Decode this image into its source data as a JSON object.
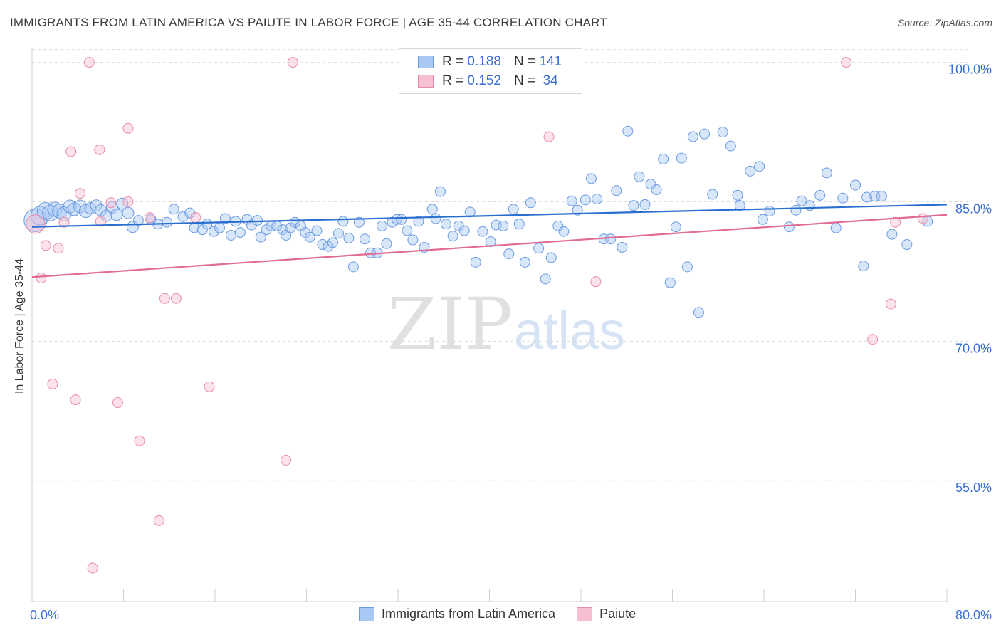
{
  "title": "IMMIGRANTS FROM LATIN AMERICA VS PAIUTE IN LABOR FORCE | AGE 35-44 CORRELATION CHART",
  "source": "Source: ZipAtlas.com",
  "watermark": {
    "zip": "ZIP",
    "atlas": "atlas"
  },
  "legend": {
    "r_label": "R =",
    "n_label": "N =",
    "rows": [
      {
        "r": "0.188",
        "n": "141"
      },
      {
        "r": "0.152",
        "n": "34"
      }
    ]
  },
  "colors": {
    "blue_fill": "#a9c8f3",
    "blue_stroke": "#6b9be0",
    "blue_line": "#2a6fcf",
    "pink_fill": "#f6bfd2",
    "pink_stroke": "#e98aab",
    "pink_line": "#e06c94",
    "axis_label": "#3a6fd0"
  },
  "chart_data": {
    "type": "scatter",
    "title": "IMMIGRANTS FROM LATIN AMERICA VS PAIUTE IN LABOR FORCE | AGE 35-44 CORRELATION CHART",
    "xlabel": "",
    "ylabel": "In Labor Force | Age 35-44",
    "xlim": [
      0,
      80
    ],
    "ylim": [
      42,
      101.5
    ],
    "x_tick_labels": [
      "0.0%",
      "80.0%"
    ],
    "y_ticks": [
      55,
      70,
      85,
      100
    ],
    "y_tick_labels": [
      "55.0%",
      "70.0%",
      "85.0%",
      "100.0%"
    ],
    "grid": true,
    "series": [
      {
        "name": "Immigrants from Latin America",
        "r": 0.188,
        "n": 141,
        "trend": [
          [
            0,
            82.3
          ],
          [
            80,
            84.7
          ]
        ],
        "points": [
          [
            0.3,
            83.0,
            1.6
          ],
          [
            0.7,
            83.5,
            1.3
          ],
          [
            1.2,
            84.0,
            1.2
          ],
          [
            1.6,
            83.8,
            1.1
          ],
          [
            2.0,
            84.2,
            1.0
          ],
          [
            2.4,
            84.0,
            1.0
          ],
          [
            2.8,
            83.7,
            1.0
          ],
          [
            3.3,
            84.5,
            0.9
          ],
          [
            3.7,
            84.2,
            0.9
          ],
          [
            4.2,
            84.5,
            0.9
          ],
          [
            4.7,
            84.0,
            0.9
          ],
          [
            5.1,
            84.3,
            0.8
          ],
          [
            5.6,
            84.6,
            0.8
          ],
          [
            6.0,
            84.1,
            0.8
          ],
          [
            6.5,
            83.5,
            0.8
          ],
          [
            7.0,
            84.4,
            0.8
          ],
          [
            7.4,
            83.6,
            0.8
          ],
          [
            7.9,
            84.8,
            0.8
          ],
          [
            8.4,
            83.8,
            0.8
          ],
          [
            8.8,
            82.3,
            0.8
          ],
          [
            9.3,
            83.0,
            0.7
          ],
          [
            10.4,
            83.1,
            0.7
          ],
          [
            11.0,
            82.6,
            0.7
          ],
          [
            11.8,
            82.8,
            0.7
          ],
          [
            12.4,
            84.2,
            0.7
          ],
          [
            13.2,
            83.4,
            0.7
          ],
          [
            13.8,
            83.8,
            0.7
          ],
          [
            14.2,
            82.2,
            0.7
          ],
          [
            14.9,
            82.0,
            0.7
          ],
          [
            15.3,
            82.6,
            0.7
          ],
          [
            15.9,
            81.8,
            0.7
          ],
          [
            16.4,
            82.2,
            0.7
          ],
          [
            16.9,
            83.2,
            0.7
          ],
          [
            17.4,
            81.4,
            0.7
          ],
          [
            17.8,
            82.9,
            0.7
          ],
          [
            18.2,
            81.7,
            0.7
          ],
          [
            18.8,
            83.1,
            0.7
          ],
          [
            19.2,
            82.5,
            0.7
          ],
          [
            19.7,
            83.0,
            0.7
          ],
          [
            20.0,
            81.2,
            0.7
          ],
          [
            20.5,
            82.0,
            0.7
          ],
          [
            20.9,
            82.4,
            0.7
          ],
          [
            21.4,
            82.4,
            0.7
          ],
          [
            21.9,
            82.0,
            0.7
          ],
          [
            22.2,
            81.4,
            0.7
          ],
          [
            22.6,
            82.2,
            0.7
          ],
          [
            23.0,
            82.8,
            0.7
          ],
          [
            23.5,
            82.4,
            0.7
          ],
          [
            23.9,
            81.7,
            0.7
          ],
          [
            24.3,
            81.2,
            0.7
          ],
          [
            24.9,
            81.9,
            0.7
          ],
          [
            25.4,
            80.4,
            0.7
          ],
          [
            25.9,
            80.2,
            0.7
          ],
          [
            26.3,
            80.6,
            0.7
          ],
          [
            26.8,
            81.6,
            0.7
          ],
          [
            27.2,
            82.9,
            0.7
          ],
          [
            27.7,
            81.1,
            0.7
          ],
          [
            28.1,
            78.0,
            0.7
          ],
          [
            28.6,
            82.8,
            0.7
          ],
          [
            29.1,
            81.0,
            0.7
          ],
          [
            29.6,
            79.5,
            0.7
          ],
          [
            30.2,
            79.5,
            0.7
          ],
          [
            30.6,
            82.4,
            0.7
          ],
          [
            31.0,
            80.5,
            0.7
          ],
          [
            31.5,
            82.8,
            0.7
          ],
          [
            31.9,
            83.1,
            0.7
          ],
          [
            32.3,
            83.1,
            0.7
          ],
          [
            32.8,
            81.9,
            0.7
          ],
          [
            33.3,
            80.9,
            0.7
          ],
          [
            33.8,
            82.9,
            0.7
          ],
          [
            34.3,
            80.1,
            0.7
          ],
          [
            35.0,
            84.2,
            0.7
          ],
          [
            35.3,
            83.2,
            0.7
          ],
          [
            35.7,
            86.1,
            0.7
          ],
          [
            36.2,
            82.6,
            0.7
          ],
          [
            36.8,
            81.3,
            0.7
          ],
          [
            37.3,
            82.4,
            0.7
          ],
          [
            37.8,
            81.9,
            0.7
          ],
          [
            38.3,
            83.9,
            0.7
          ],
          [
            38.8,
            78.5,
            0.7
          ],
          [
            39.4,
            81.8,
            0.7
          ],
          [
            40.1,
            80.7,
            0.7
          ],
          [
            40.6,
            82.5,
            0.7
          ],
          [
            41.2,
            82.4,
            0.7
          ],
          [
            41.7,
            79.4,
            0.7
          ],
          [
            42.1,
            84.2,
            0.7
          ],
          [
            42.6,
            82.6,
            0.7
          ],
          [
            43.1,
            78.5,
            0.7
          ],
          [
            43.6,
            84.9,
            0.7
          ],
          [
            44.3,
            80.0,
            0.7
          ],
          [
            44.9,
            76.7,
            0.7
          ],
          [
            45.4,
            79.0,
            0.7
          ],
          [
            46.0,
            82.4,
            0.7
          ],
          [
            46.5,
            81.8,
            0.7
          ],
          [
            47.2,
            85.1,
            0.7
          ],
          [
            47.7,
            84.1,
            0.7
          ],
          [
            48.4,
            85.2,
            0.7
          ],
          [
            48.9,
            87.5,
            0.7
          ],
          [
            49.4,
            85.3,
            0.7
          ],
          [
            50.0,
            81.0,
            0.7
          ],
          [
            50.6,
            81.0,
            0.7
          ],
          [
            51.1,
            86.2,
            0.7
          ],
          [
            51.6,
            80.1,
            0.7
          ],
          [
            52.1,
            92.6,
            0.7
          ],
          [
            52.6,
            84.6,
            0.7
          ],
          [
            53.1,
            87.7,
            0.7
          ],
          [
            53.6,
            84.7,
            0.7
          ],
          [
            54.1,
            86.9,
            0.7
          ],
          [
            54.6,
            86.3,
            0.7
          ],
          [
            55.2,
            89.6,
            0.7
          ],
          [
            55.8,
            76.3,
            0.7
          ],
          [
            56.3,
            82.3,
            0.7
          ],
          [
            56.8,
            89.7,
            0.7
          ],
          [
            57.3,
            78.0,
            0.7
          ],
          [
            57.8,
            92.0,
            0.7
          ],
          [
            58.3,
            73.1,
            0.7
          ],
          [
            58.8,
            92.3,
            0.7
          ],
          [
            59.5,
            85.8,
            0.7
          ],
          [
            60.4,
            92.5,
            0.7
          ],
          [
            61.1,
            91.0,
            0.7
          ],
          [
            61.7,
            85.7,
            0.7
          ],
          [
            61.9,
            84.6,
            0.7
          ],
          [
            62.8,
            88.3,
            0.7
          ],
          [
            63.6,
            88.8,
            0.7
          ],
          [
            63.9,
            83.1,
            0.7
          ],
          [
            64.5,
            84.0,
            0.7
          ],
          [
            66.2,
            82.3,
            0.7
          ],
          [
            66.8,
            84.1,
            0.7
          ],
          [
            67.3,
            85.1,
            0.7
          ],
          [
            68.0,
            84.6,
            0.7
          ],
          [
            68.9,
            85.7,
            0.7
          ],
          [
            69.5,
            88.1,
            0.7
          ],
          [
            70.3,
            82.2,
            0.7
          ],
          [
            70.9,
            85.4,
            0.7
          ],
          [
            72.0,
            86.8,
            0.7
          ],
          [
            72.7,
            78.1,
            0.7
          ],
          [
            73.0,
            85.5,
            0.7
          ],
          [
            73.7,
            85.6,
            0.7
          ],
          [
            74.3,
            85.6,
            0.7
          ],
          [
            75.2,
            81.5,
            0.7
          ],
          [
            76.5,
            80.4,
            0.7
          ],
          [
            78.3,
            82.9,
            0.7
          ]
        ]
      },
      {
        "name": "Paiute",
        "r": 0.152,
        "n": 34,
        "trend": [
          [
            0,
            76.9
          ],
          [
            80,
            83.6
          ]
        ],
        "points": [
          [
            0.3,
            82.6,
            1.3
          ],
          [
            0.8,
            76.8,
            0.7
          ],
          [
            1.2,
            80.3,
            0.7
          ],
          [
            1.8,
            65.4,
            0.7
          ],
          [
            2.3,
            80.0,
            0.7
          ],
          [
            2.8,
            82.8,
            0.7
          ],
          [
            3.4,
            90.4,
            0.7
          ],
          [
            3.8,
            63.7,
            0.7
          ],
          [
            4.2,
            85.9,
            0.7
          ],
          [
            5.0,
            100.0,
            0.7
          ],
          [
            5.3,
            45.6,
            0.7
          ],
          [
            5.9,
            90.6,
            0.7
          ],
          [
            6.0,
            82.9,
            0.7
          ],
          [
            6.9,
            84.9,
            0.7
          ],
          [
            7.5,
            63.4,
            0.7
          ],
          [
            8.4,
            92.9,
            0.7
          ],
          [
            8.4,
            85.0,
            0.7
          ],
          [
            9.4,
            59.3,
            0.7
          ],
          [
            10.3,
            83.3,
            0.7
          ],
          [
            11.1,
            50.7,
            0.7
          ],
          [
            11.6,
            74.6,
            0.7
          ],
          [
            12.6,
            74.6,
            0.7
          ],
          [
            14.3,
            83.3,
            0.7
          ],
          [
            15.5,
            65.1,
            0.7
          ],
          [
            22.2,
            57.2,
            0.7
          ],
          [
            22.8,
            100.0,
            0.7
          ],
          [
            45.2,
            92.0,
            0.7
          ],
          [
            49.3,
            76.4,
            0.7
          ],
          [
            71.2,
            100.0,
            0.7
          ],
          [
            73.5,
            70.2,
            0.7
          ],
          [
            75.1,
            74.0,
            0.7
          ],
          [
            75.5,
            82.8,
            0.7
          ],
          [
            77.9,
            83.2,
            0.7
          ]
        ]
      }
    ]
  },
  "bottom_legend": [
    "Immigrants from Latin America",
    "Paiute"
  ]
}
